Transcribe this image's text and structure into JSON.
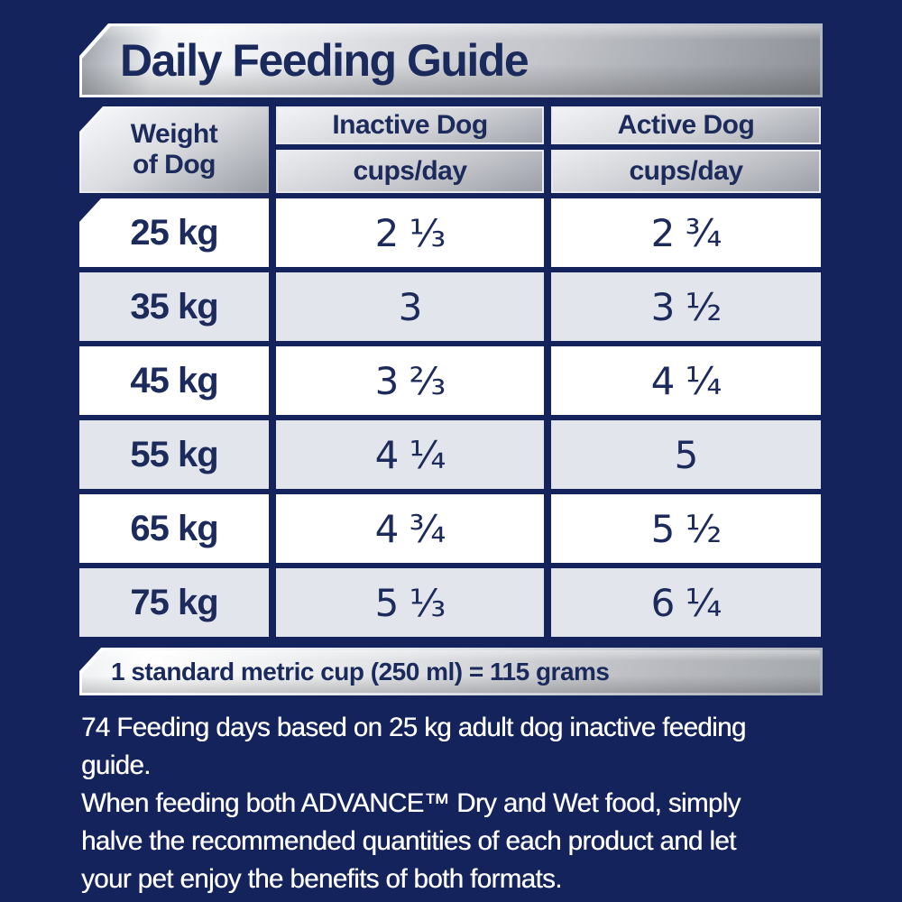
{
  "header": {
    "title": "Daily Feeding Guide"
  },
  "table": {
    "weight_header": {
      "line1": "Weight",
      "line2": "of Dog"
    },
    "columns": [
      {
        "label": "Inactive Dog",
        "unit": "cups/day"
      },
      {
        "label": "Active Dog",
        "unit": "cups/day"
      }
    ],
    "rows": [
      {
        "weight": "25 kg",
        "inactive": "2 ⅓",
        "active": "2 ¾"
      },
      {
        "weight": "35 kg",
        "inactive": "3",
        "active": "3 ½"
      },
      {
        "weight": "45 kg",
        "inactive": "3 ⅔",
        "active": "4 ¼"
      },
      {
        "weight": "55 kg",
        "inactive": "4 ¼",
        "active": "5"
      },
      {
        "weight": "65 kg",
        "inactive": "4 ¾",
        "active": "5 ½"
      },
      {
        "weight": "75 kg",
        "inactive": "5 ⅓",
        "active": "6 ¼"
      }
    ]
  },
  "footnote_bar": {
    "text": "1 standard metric cup (250 ml) = 115 grams"
  },
  "notes": [
    {
      "lines": [
        "74 Feeding days based on 25 kg adult dog inactive feeding",
        "guide."
      ]
    },
    {
      "lines": [
        "When feeding both ADVANCE™ Dry and Wet food, simply",
        "halve the recommended quantities of each product and let",
        "your pet enjoy the benefits of both formats."
      ]
    }
  ],
  "colors": {
    "background_navy": "#14235C",
    "text_navy": "#1C2B5C",
    "row_white": "#FFFFFF",
    "row_alt_gray": "#E3E5EC",
    "silver_light": "#F8F9FB",
    "silver_dark": "#9B9EA5"
  },
  "chart_data": {
    "type": "table",
    "title": "Daily Feeding Guide",
    "columns": [
      "Weight of Dog",
      "Inactive Dog (cups/day)",
      "Active Dog (cups/day)"
    ],
    "weights_kg": [
      25,
      35,
      45,
      55,
      65,
      75
    ],
    "series": [
      {
        "name": "Inactive Dog cups/day",
        "values": [
          2.33,
          3,
          3.67,
          4.25,
          4.75,
          5.33
        ]
      },
      {
        "name": "Active Dog cups/day",
        "values": [
          2.75,
          3.5,
          4.25,
          5,
          5.5,
          6.25
        ]
      }
    ],
    "annotations": [
      "1 standard metric cup (250 ml) = 115 grams",
      "74 Feeding days based on 25 kg adult dog inactive feeding guide.",
      "When feeding both ADVANCE™ Dry and Wet food, simply halve the recommended quantities of each product and let your pet enjoy the benefits of both formats."
    ]
  }
}
